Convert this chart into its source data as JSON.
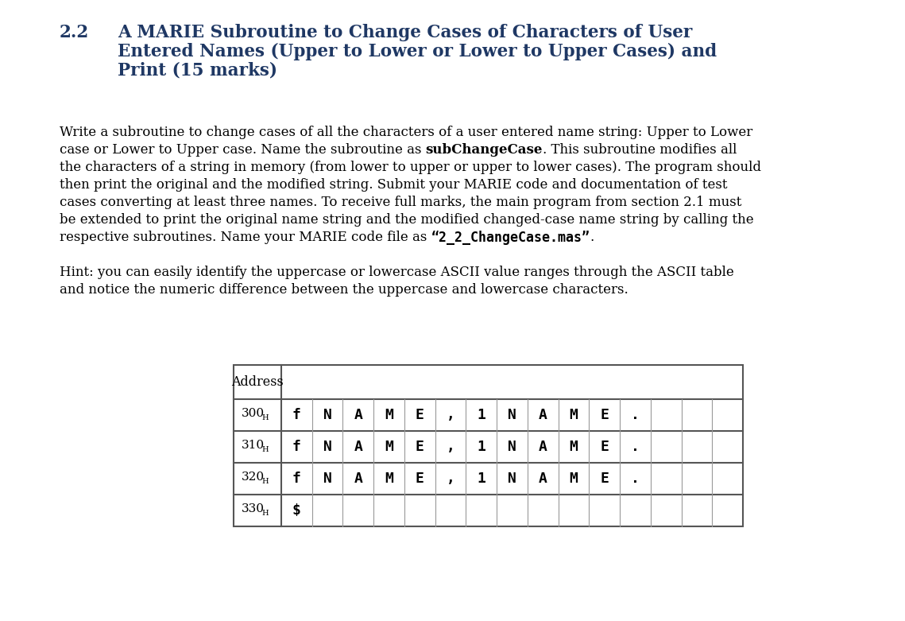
{
  "bg_color": "#ffffff",
  "section_number": "2.2",
  "title_line1": "A MARIE Subroutine to Change Cases of Characters of User",
  "title_line2": "Entered Names (Upper to Lower or Lower to Upper Cases) and",
  "title_line3": "Print (15 marks)",
  "body_paragraph": [
    {
      "text": "Write a subroutine to change cases of all the characters of a user entered name string: Upper to Lower",
      "bold": false
    },
    {
      "text": "case or Lower to Upper case. Name the subroutine as ",
      "bold": false
    },
    {
      "text": "subChangeCase",
      "bold": true
    },
    {
      "text": ". This subroutine modifies all",
      "bold": false
    },
    {
      "text": "the characters of a string in memory (from lower to upper or upper to lower cases). The program should",
      "bold": false
    },
    {
      "text": "then print the original and the modified string. Submit your MARIE code and documentation of test",
      "bold": false
    },
    {
      "text": "cases converting at least three names. To receive full marks, the main program from section 2.1 must",
      "bold": false
    },
    {
      "text": "be extended to print the original name string and the modified changed-case name string by calling the",
      "bold": false
    },
    {
      "text": "respective subroutines. Name your MARIE code file as ",
      "bold": false
    },
    {
      "text": "“2_2_ChangeCase.mas”",
      "bold": true,
      "mono": true
    },
    {
      "text": ".",
      "bold": false
    }
  ],
  "hint_line1": "Hint: you can easily identify the uppercase or lowercase ASCII value ranges through the ASCII table",
  "hint_line2": "and notice the numeric difference between the uppercase and lowercase characters.",
  "table_rows": [
    {
      "addr": "300",
      "cells": [
        "f",
        "N",
        "A",
        "M",
        "E",
        ",",
        "1",
        "N",
        "A",
        "M",
        "E",
        ".",
        "",
        "",
        ""
      ]
    },
    {
      "addr": "310",
      "cells": [
        "f",
        "N",
        "A",
        "M",
        "E",
        ",",
        "1",
        "N",
        "A",
        "M",
        "E",
        ".",
        "",
        "",
        ""
      ]
    },
    {
      "addr": "320",
      "cells": [
        "f",
        "N",
        "A",
        "M",
        "E",
        ",",
        "1",
        "N",
        "A",
        "M",
        "E",
        ".",
        "",
        "",
        ""
      ]
    },
    {
      "addr": "330",
      "cells": [
        "$",
        "",
        "",
        "",
        "",
        "",
        "",
        "",
        "",
        "",
        "",
        "",
        "",
        "",
        ""
      ]
    }
  ],
  "title_color": "#1f3864",
  "body_color": "#000000",
  "table_border_color": "#555555",
  "table_inner_color": "#999999"
}
